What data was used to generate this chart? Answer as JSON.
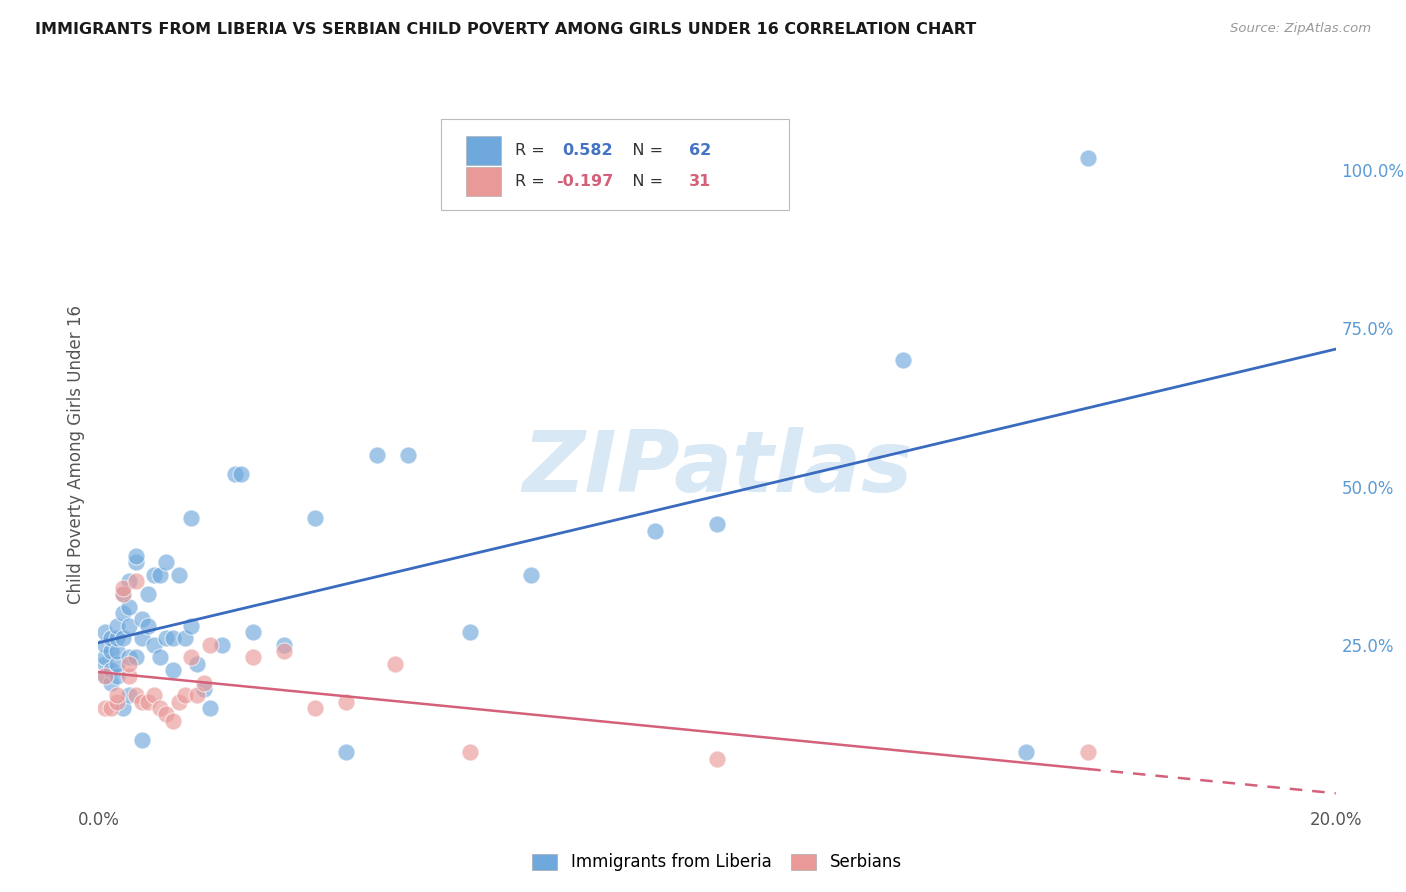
{
  "title": "IMMIGRANTS FROM LIBERIA VS SERBIAN CHILD POVERTY AMONG GIRLS UNDER 16 CORRELATION CHART",
  "source": "Source: ZipAtlas.com",
  "ylabel": "Child Poverty Among Girls Under 16",
  "legend_label1": "Immigrants from Liberia",
  "legend_label2": "Serbians",
  "R1": 0.582,
  "N1": 62,
  "R2": -0.197,
  "N2": 31,
  "xlim": [
    0.0,
    0.2
  ],
  "ylim": [
    0.0,
    1.1
  ],
  "yticks_right": [
    0.25,
    0.5,
    0.75,
    1.0
  ],
  "ytick_right_labels": [
    "25.0%",
    "50.0%",
    "75.0%",
    "100.0%"
  ],
  "xticks": [
    0.0,
    0.04,
    0.08,
    0.12,
    0.16,
    0.2
  ],
  "xtick_labels": [
    "0.0%",
    "",
    "",
    "",
    "",
    "20.0%"
  ],
  "color_blue": "#6fa8dc",
  "color_pink": "#ea9999",
  "color_line_blue": "#3a6bbf",
  "color_line_pink": "#d4607a",
  "blue_x": [
    0.001,
    0.001,
    0.001,
    0.001,
    0.001,
    0.002,
    0.002,
    0.002,
    0.002,
    0.003,
    0.003,
    0.003,
    0.003,
    0.003,
    0.004,
    0.004,
    0.004,
    0.004,
    0.005,
    0.005,
    0.005,
    0.005,
    0.005,
    0.006,
    0.006,
    0.006,
    0.007,
    0.007,
    0.007,
    0.008,
    0.008,
    0.009,
    0.009,
    0.01,
    0.01,
    0.011,
    0.011,
    0.012,
    0.012,
    0.013,
    0.014,
    0.015,
    0.015,
    0.016,
    0.017,
    0.018,
    0.02,
    0.022,
    0.023,
    0.025,
    0.03,
    0.035,
    0.04,
    0.045,
    0.05,
    0.06,
    0.07,
    0.09,
    0.1,
    0.13,
    0.15,
    0.16
  ],
  "blue_y": [
    0.2,
    0.22,
    0.23,
    0.25,
    0.27,
    0.19,
    0.21,
    0.24,
    0.26,
    0.2,
    0.22,
    0.24,
    0.26,
    0.28,
    0.15,
    0.26,
    0.3,
    0.33,
    0.17,
    0.23,
    0.28,
    0.31,
    0.35,
    0.23,
    0.38,
    0.39,
    0.26,
    0.29,
    0.1,
    0.28,
    0.33,
    0.25,
    0.36,
    0.23,
    0.36,
    0.26,
    0.38,
    0.21,
    0.26,
    0.36,
    0.26,
    0.28,
    0.45,
    0.22,
    0.18,
    0.15,
    0.25,
    0.52,
    0.52,
    0.27,
    0.25,
    0.45,
    0.08,
    0.55,
    0.55,
    0.27,
    0.36,
    0.43,
    0.44,
    0.7,
    0.08,
    1.02
  ],
  "pink_x": [
    0.001,
    0.001,
    0.002,
    0.003,
    0.003,
    0.004,
    0.004,
    0.005,
    0.005,
    0.006,
    0.006,
    0.007,
    0.008,
    0.009,
    0.01,
    0.011,
    0.012,
    0.013,
    0.014,
    0.015,
    0.016,
    0.017,
    0.018,
    0.025,
    0.03,
    0.035,
    0.04,
    0.048,
    0.06,
    0.1,
    0.16
  ],
  "pink_y": [
    0.2,
    0.15,
    0.15,
    0.16,
    0.17,
    0.33,
    0.34,
    0.2,
    0.22,
    0.35,
    0.17,
    0.16,
    0.16,
    0.17,
    0.15,
    0.14,
    0.13,
    0.16,
    0.17,
    0.23,
    0.17,
    0.19,
    0.25,
    0.23,
    0.24,
    0.15,
    0.16,
    0.22,
    0.08,
    0.07,
    0.08
  ]
}
